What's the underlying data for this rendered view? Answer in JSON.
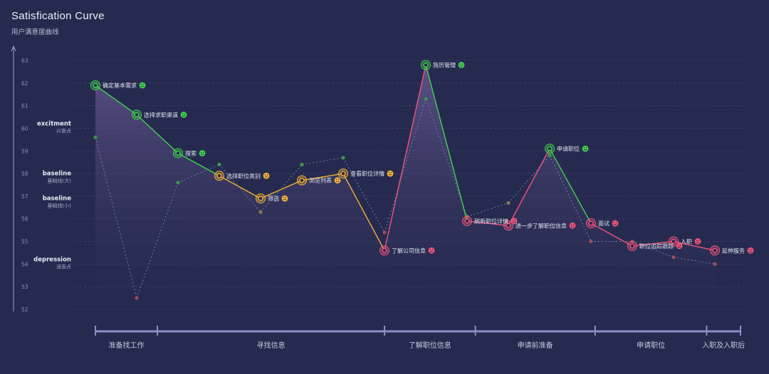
{
  "header": {
    "title": "Satisfication Curve",
    "subtitle": "用户满意度曲线"
  },
  "chart_data": {
    "type": "line",
    "title": "Satisfication Curve",
    "subtitle": "用户满意度曲线",
    "ylim": [
      52,
      63
    ],
    "yticks": [
      52,
      53,
      54,
      55,
      56,
      57,
      58,
      59,
      60,
      61,
      62,
      63
    ],
    "grid": true,
    "zones": [
      {
        "name": "excitment",
        "sub": "兴奋点",
        "y": 60
      },
      {
        "name": "baseline",
        "sub": "基础线(大)",
        "y": 57.8
      },
      {
        "name": "baseline",
        "sub": "基础线(小)",
        "y": 56.7
      },
      {
        "name": "depression",
        "sub": "沮丧点",
        "y": 54
      }
    ],
    "stages": [
      {
        "name": "准备找工作",
        "from": 0,
        "to": 1.5
      },
      {
        "name": "寻找信息",
        "from": 1.5,
        "to": 7
      },
      {
        "name": "了解职位信息",
        "from": 7,
        "to": 9.2
      },
      {
        "name": "申请前准备",
        "from": 9.2,
        "to": 12.1
      },
      {
        "name": "申请职位",
        "from": 12.1,
        "to": 14.8
      },
      {
        "name": "入职及入职后",
        "from": 14.8,
        "to": 17.2
      }
    ],
    "series": [
      {
        "name": "main",
        "points": [
          {
            "x": 0,
            "y": 61.9,
            "label": "确定基本需求",
            "mood": "happy"
          },
          {
            "x": 1,
            "y": 60.6,
            "label": "选择求职渠道",
            "mood": "happy"
          },
          {
            "x": 2,
            "y": 58.9,
            "label": "搜索",
            "mood": "happy"
          },
          {
            "x": 3,
            "y": 57.9,
            "label": "选择职位类别",
            "mood": "neutral"
          },
          {
            "x": 4,
            "y": 56.9,
            "label": "筛选",
            "mood": "neutral"
          },
          {
            "x": 5,
            "y": 57.7,
            "label": "浏览列表",
            "mood": "neutral"
          },
          {
            "x": 6,
            "y": 58.0,
            "label": "查看职位详情",
            "mood": "neutral"
          },
          {
            "x": 7,
            "y": 54.6,
            "label": "了解公司信息",
            "mood": "sad"
          },
          {
            "x": 8,
            "y": 62.8,
            "label": "简历管理",
            "mood": "happy"
          },
          {
            "x": 9,
            "y": 55.9,
            "label": "刷新职位详情",
            "mood": "sad"
          },
          {
            "x": 10,
            "y": 55.7,
            "label": "进一步了解职位信息",
            "mood": "sad"
          },
          {
            "x": 11,
            "y": 59.1,
            "label": "申请职位",
            "mood": "happy"
          },
          {
            "x": 12,
            "y": 55.8,
            "label": "面试",
            "mood": "sad"
          },
          {
            "x": 13,
            "y": 54.8,
            "label": "职位追踪跟踪",
            "mood": "sad"
          },
          {
            "x": 14,
            "y": 55.0,
            "label": "入职",
            "mood": "sad"
          },
          {
            "x": 15,
            "y": 54.6,
            "label": "延伸服务",
            "mood": "sad"
          }
        ]
      },
      {
        "name": "secondary",
        "points": [
          {
            "x": 0,
            "y": 59.6
          },
          {
            "x": 1,
            "y": 52.5
          },
          {
            "x": 2,
            "y": 57.6
          },
          {
            "x": 3,
            "y": 58.4
          },
          {
            "x": 4,
            "y": 56.3
          },
          {
            "x": 5,
            "y": 58.4
          },
          {
            "x": 6,
            "y": 58.7
          },
          {
            "x": 7,
            "y": 55.4
          },
          {
            "x": 8,
            "y": 61.3
          },
          {
            "x": 9,
            "y": 56.1
          },
          {
            "x": 10,
            "y": 56.7
          },
          {
            "x": 11,
            "y": 58.8
          },
          {
            "x": 12,
            "y": 55.0
          },
          {
            "x": 13,
            "y": 55.0
          },
          {
            "x": 14,
            "y": 54.3
          },
          {
            "x": 15,
            "y": 54.0
          }
        ]
      }
    ],
    "colors": {
      "happy": "#3fd34b",
      "neutral": "#f2b233",
      "sad": "#f0557a",
      "secondary": "#6e7ba5",
      "grid": "#3d4270",
      "axis": "#8a8fc8"
    }
  }
}
